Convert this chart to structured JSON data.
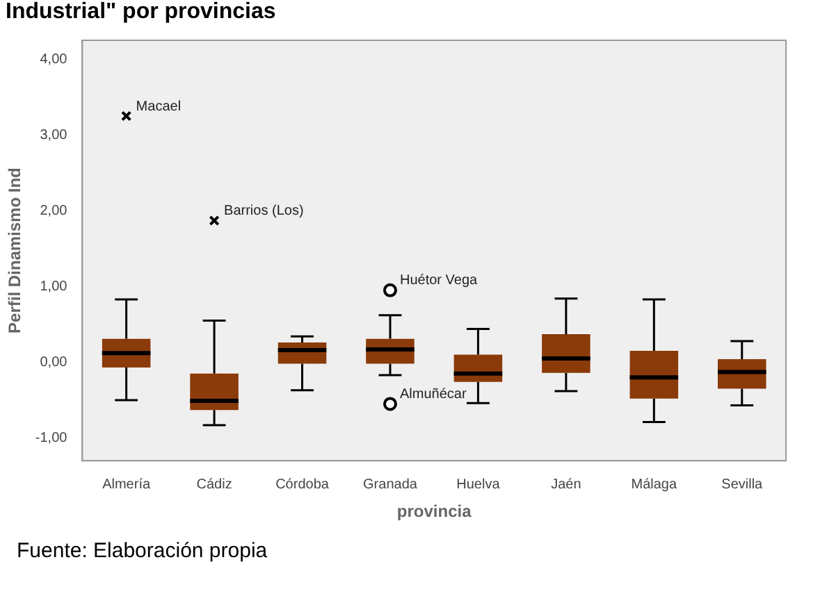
{
  "chart_data": {
    "type": "box",
    "title": "Industrial\" por provincias",
    "xlabel": "provincia",
    "ylabel": "Perfil Dinamismo Ind",
    "categories": [
      "Almería",
      "Cádiz",
      "Córdoba",
      "Granada",
      "Huelva",
      "Jaén",
      "Málaga",
      "Sevilla"
    ],
    "color": "#8b3a0a",
    "boxes": [
      {
        "low": -0.5,
        "q1": -0.07,
        "median": 0.12,
        "q3": 0.31,
        "high": 0.83
      },
      {
        "low": -0.83,
        "q1": -0.63,
        "median": -0.51,
        "q3": -0.15,
        "high": 0.55
      },
      {
        "low": -0.37,
        "q1": -0.02,
        "median": 0.16,
        "q3": 0.26,
        "high": 0.34
      },
      {
        "low": -0.17,
        "q1": -0.02,
        "median": 0.17,
        "q3": 0.31,
        "high": 0.62
      },
      {
        "low": -0.54,
        "q1": -0.26,
        "median": -0.15,
        "q3": 0.1,
        "high": 0.44
      },
      {
        "low": -0.38,
        "q1": -0.14,
        "median": 0.05,
        "q3": 0.37,
        "high": 0.84
      },
      {
        "low": -0.79,
        "q1": -0.48,
        "median": -0.2,
        "q3": 0.15,
        "high": 0.83
      },
      {
        "low": -0.57,
        "q1": -0.35,
        "median": -0.13,
        "q3": 0.04,
        "high": 0.28
      }
    ],
    "series": [
      {
        "type": "scatter",
        "marker": "cross",
        "color": "#000000",
        "x": [
          "Almería",
          "Cádiz"
        ],
        "values": [
          3.25,
          1.87
        ]
      },
      {
        "type": "scatter",
        "marker": "circle",
        "color": "#000000",
        "x": [
          "Granada",
          "Granada"
        ],
        "values": [
          0.95,
          -0.55
        ]
      }
    ],
    "ylim": [
      -1.3,
      4.25
    ],
    "yticks": [
      {
        "value": -1,
        "label": "-1,00"
      },
      {
        "value": 0,
        "label": "0,00"
      },
      {
        "value": 1,
        "label": "1,00"
      },
      {
        "value": 2,
        "label": "2,00"
      },
      {
        "value": 3,
        "label": "3,00"
      },
      {
        "value": 4,
        "label": "4,00"
      }
    ],
    "grid": false,
    "legend": false,
    "annotations": [
      {
        "text": "Macael",
        "x": "Almería",
        "y": 3.25
      },
      {
        "text": "Barrios (Los)",
        "x": "Cádiz",
        "y": 1.87
      },
      {
        "text": "Huétor Vega",
        "x": "Granada",
        "y": 0.95
      },
      {
        "text": "Almuñécar",
        "x": "Granada",
        "y": -0.55
      },
      "Fuente: Elaboración propia"
    ]
  }
}
